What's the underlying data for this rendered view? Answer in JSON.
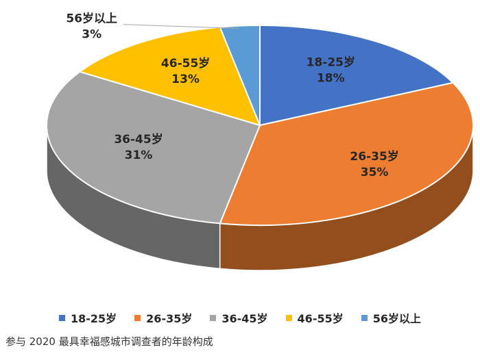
{
  "chart_data": {
    "type": "pie",
    "categories": [
      "18-25岁",
      "26-35岁",
      "36-45岁",
      "46-55岁",
      "56岁以上"
    ],
    "values": [
      18,
      35,
      31,
      13,
      3
    ],
    "value_labels": [
      "18%",
      "35%",
      "31%",
      "13%",
      "3%"
    ],
    "colors": [
      "#4472C4",
      "#ED7D31",
      "#A5A5A5",
      "#FFC000",
      "#5B9BD5"
    ],
    "legend_position": "bottom",
    "three_d": true
  },
  "caption": "参与 2020 最具幸福感城市调查者的年龄构成"
}
